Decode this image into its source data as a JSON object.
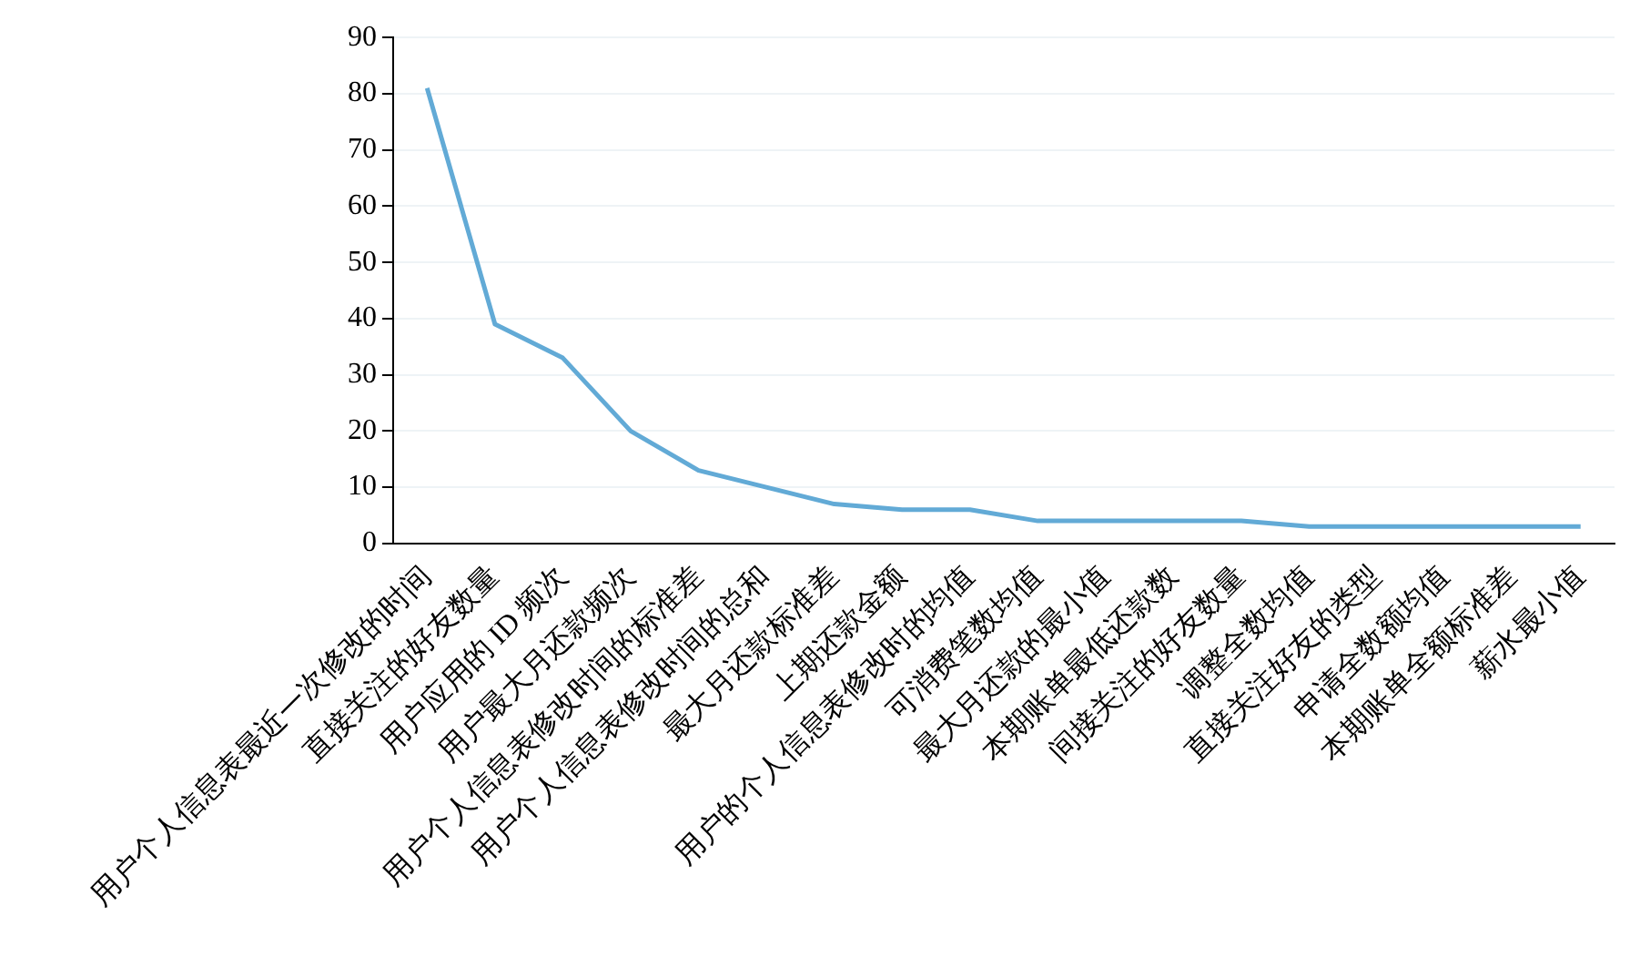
{
  "chart_data": {
    "type": "line",
    "categories": [
      "用户个人信息表最近一次修改的时间",
      "直接关注的好友数量",
      "用户应用的 ID 频次",
      "用户最大月还款频次",
      "用户个人信息表修改时间的标准差",
      "用户个人信息表修改时间的总和",
      "最大月还款标准差",
      "上期还款金额",
      "用户的个人信息表修改时的均值",
      "可消费笔数均值",
      "最大月还款的最小值",
      "本期账单最低还款数",
      "间接关注的好友数量",
      "调整全数均值",
      "直接关注好友的类型",
      "申请全数额均值",
      "本期账单全额标准差",
      "薪水最小值"
    ],
    "series": [
      {
        "color": "#62aad6",
        "values": [
          81,
          39,
          33,
          20,
          13,
          10,
          7,
          6,
          6,
          4,
          4,
          4,
          4,
          3,
          3,
          3,
          3,
          3
        ]
      }
    ],
    "ylim": [
      0,
      90
    ],
    "yticks": [
      0,
      10,
      20,
      30,
      40,
      50,
      60,
      70,
      80,
      90
    ],
    "grid": "y",
    "legend": false,
    "marker": "none",
    "line_style": "solid"
  }
}
